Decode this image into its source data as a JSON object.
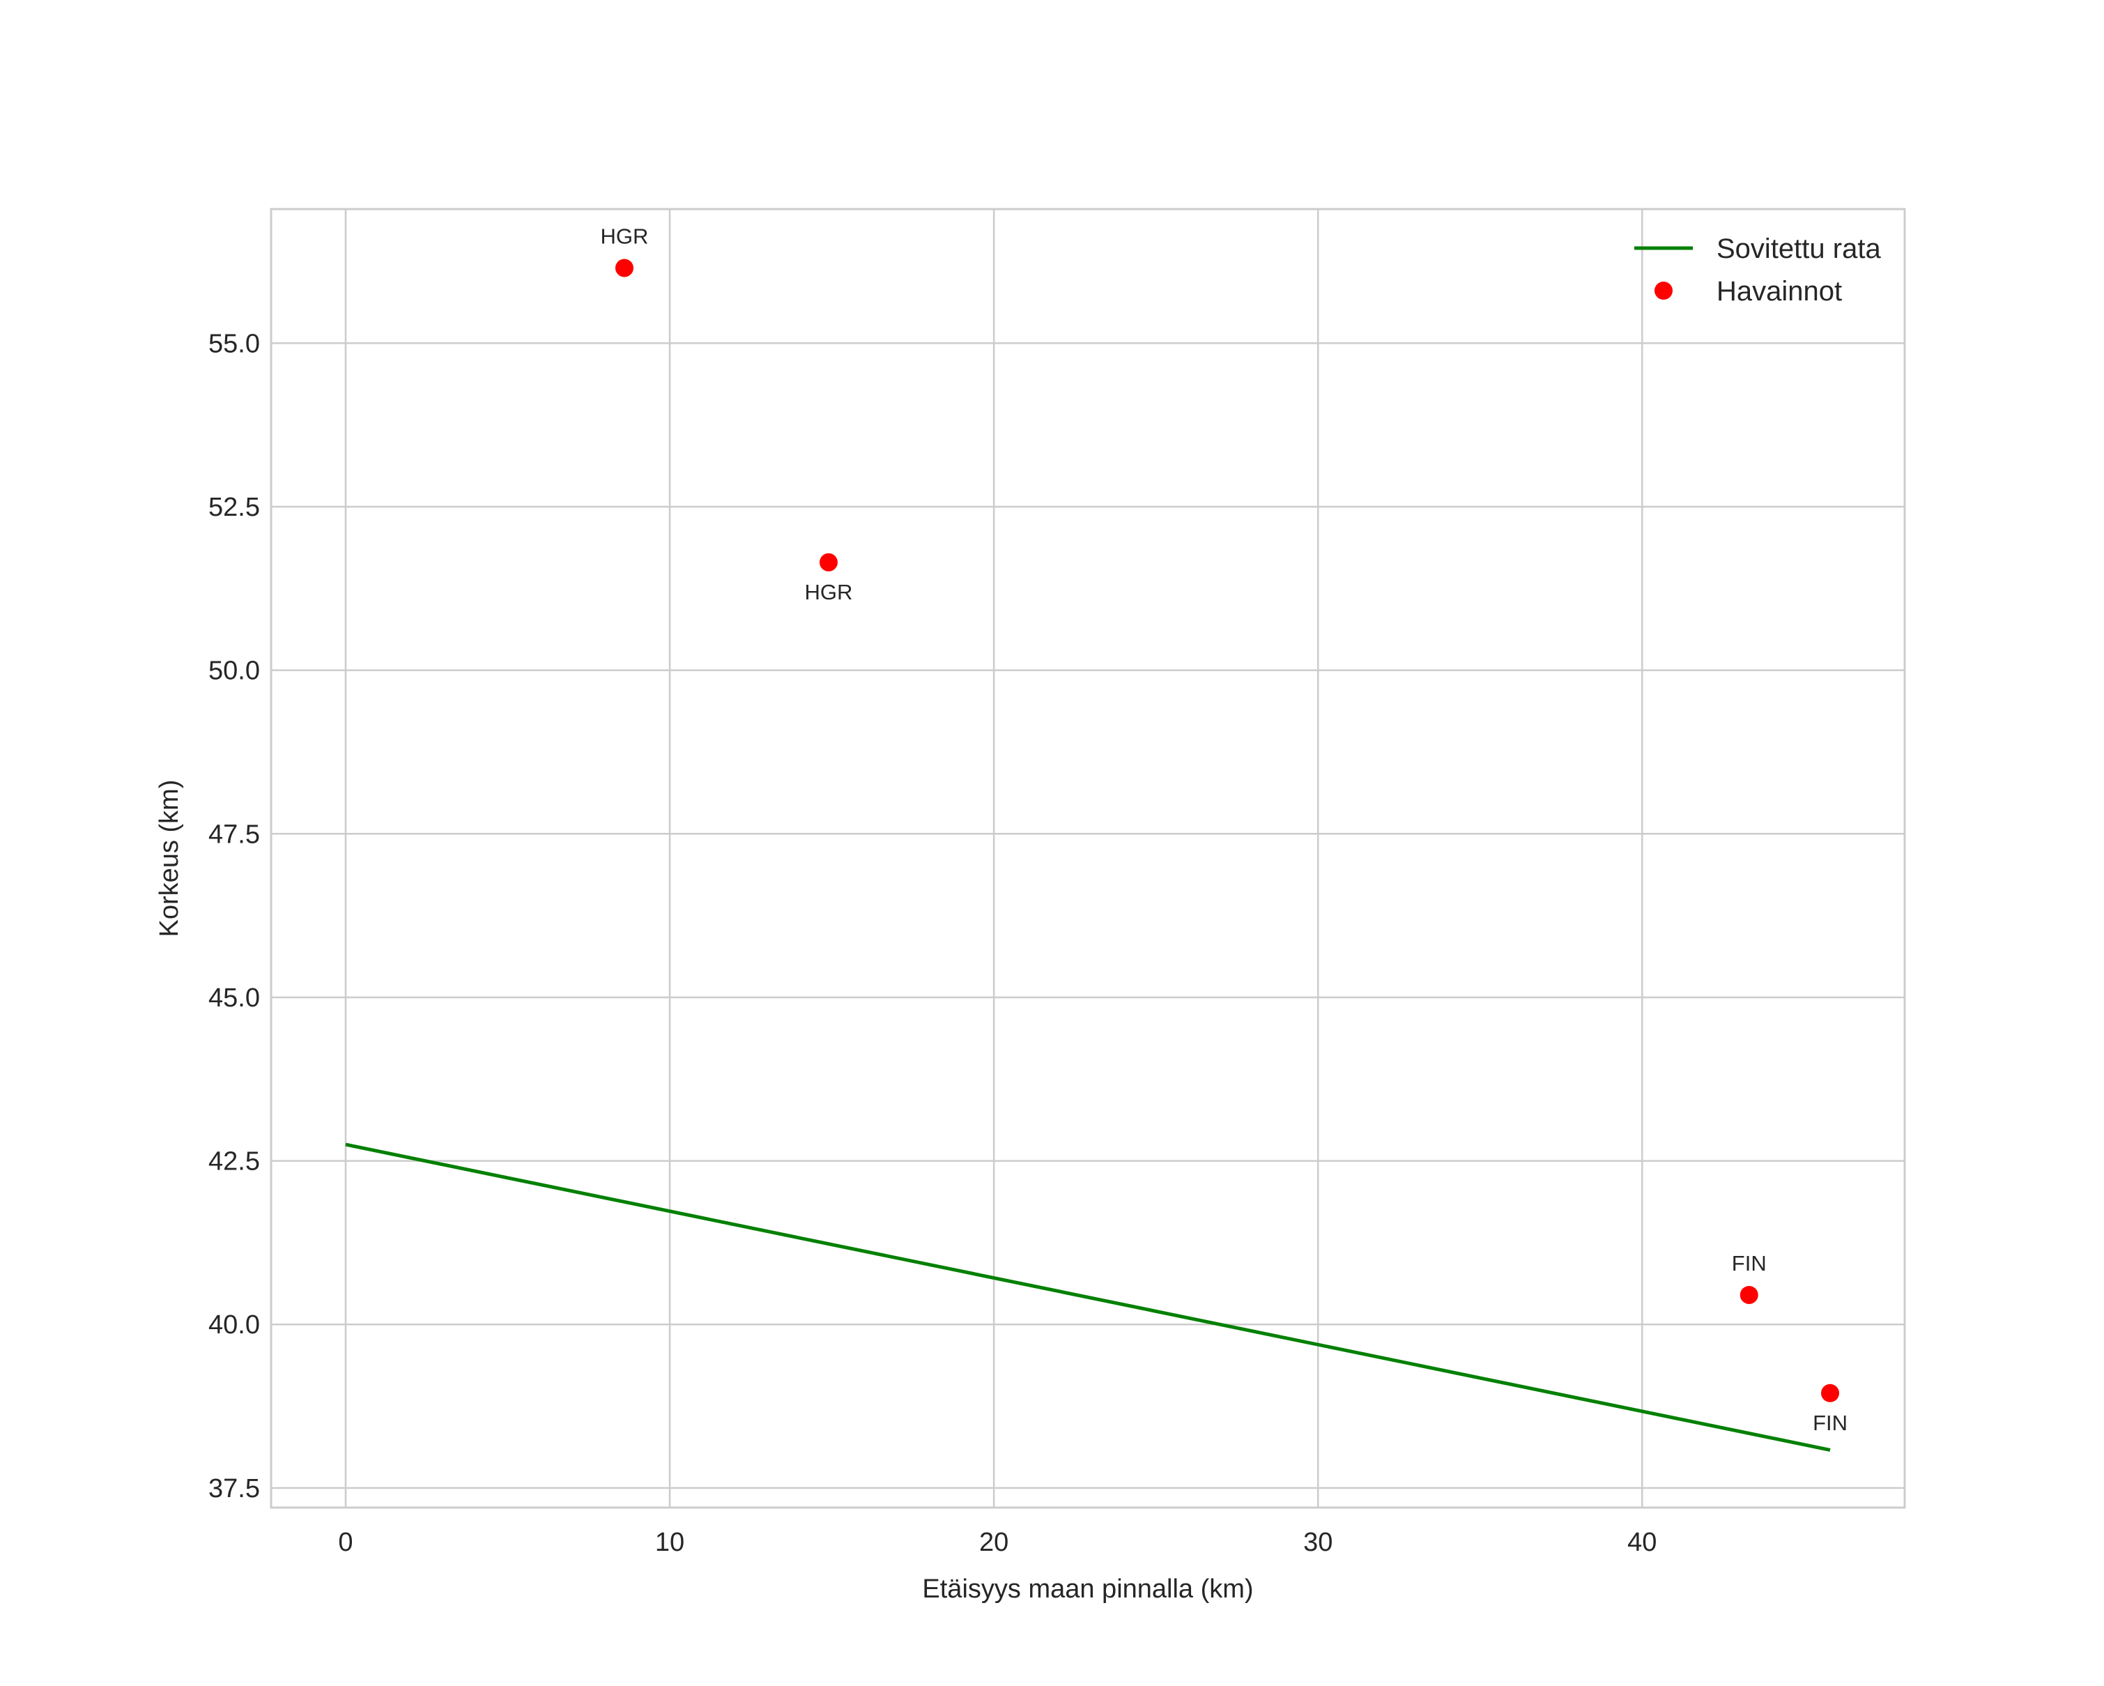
{
  "chart_data": {
    "type": "scatter",
    "title": "",
    "xlabel": "Etäisyys maan pinnalla (km)",
    "ylabel": "Korkeus (km)",
    "xlim": [
      -2.3,
      48.1
    ],
    "ylim": [
      37.2,
      57.05
    ],
    "xticks": [
      0,
      10,
      20,
      30,
      40
    ],
    "xtick_labels": [
      "0",
      "10",
      "20",
      "30",
      "40"
    ],
    "yticks": [
      37.5,
      40.0,
      42.5,
      45.0,
      47.5,
      50.0,
      52.5,
      55.0
    ],
    "ytick_labels": [
      "37.5",
      "40.0",
      "42.5",
      "45.0",
      "47.5",
      "50.0",
      "52.5",
      "55.0"
    ],
    "grid": true,
    "legend_position": "top-right",
    "series": [
      {
        "name": "Sovitettu rata",
        "kind": "line",
        "color": "#008000",
        "x": [
          0,
          45.8
        ],
        "y": [
          42.75,
          38.08
        ]
      },
      {
        "name": "Havainnot",
        "kind": "scatter",
        "color": "#ff0000",
        "points": [
          {
            "x": 8.6,
            "y": 56.15,
            "label": "HGR",
            "label_pos": "above"
          },
          {
            "x": 14.9,
            "y": 51.65,
            "label": "HGR",
            "label_pos": "below"
          },
          {
            "x": 43.3,
            "y": 40.45,
            "label": "FIN",
            "label_pos": "above"
          },
          {
            "x": 45.8,
            "y": 38.95,
            "label": "FIN",
            "label_pos": "below"
          }
        ]
      }
    ]
  }
}
